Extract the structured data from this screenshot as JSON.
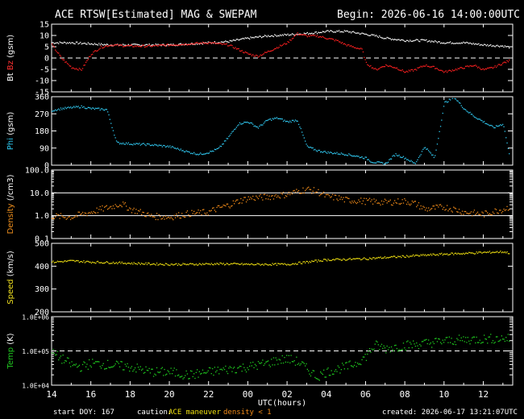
{
  "header": {
    "title": "ACE RTSW[Estimated] MAG & SWEPAM",
    "begin": "Begin: 2026-06-16 14:00:00UTC"
  },
  "footer": {
    "start_doy": "start DOY: 167",
    "caution_label": "caution:",
    "ace_maneuver": "ACE maneuver",
    "density_note": "density < 1",
    "created": "created: 2026-06-17 13:21:07UTC",
    "xlabel": "UTC(hours)"
  },
  "chart_data": [
    {
      "type": "scatter",
      "ylabel_parts": [
        "Bt",
        "Bz",
        "(gsm)"
      ],
      "ylabel_colors": [
        "#ffffff",
        "#ff3030",
        "#ffffff"
      ],
      "yticks": [
        "15",
        "10",
        "5",
        "0",
        "-5",
        "-10",
        "-15"
      ],
      "ylim": [
        -15,
        15
      ],
      "dashed_ref": 0,
      "series": [
        {
          "name": "Bt",
          "color": "#ffffff",
          "x": [
            14.0,
            15.0,
            16.0,
            17.0,
            18.0,
            19.0,
            20.0,
            21.0,
            22.0,
            23.0,
            24.0,
            25.0,
            26.0,
            26.8,
            27.5,
            28.0,
            29.0,
            29.8,
            30.5,
            31.0,
            32.0,
            33.0,
            34.0,
            35.0,
            36.0,
            37.0,
            37.3
          ],
          "values": [
            7,
            7,
            6.5,
            6,
            6,
            6,
            6,
            6.5,
            7,
            7.5,
            9,
            10,
            10.5,
            11,
            11.5,
            12,
            12,
            11,
            10,
            9,
            8,
            8,
            7,
            7,
            6,
            5.5,
            5
          ]
        },
        {
          "name": "Bz",
          "color": "#ff2020",
          "x": [
            14.0,
            14.5,
            15.0,
            15.5,
            16.0,
            16.5,
            17.0,
            18.0,
            19.0,
            20.0,
            21.0,
            22.0,
            23.0,
            24.0,
            24.5,
            25.0,
            25.5,
            26.0,
            26.5,
            27.0,
            27.5,
            28.0,
            28.5,
            29.0,
            29.8,
            30.0,
            30.5,
            31.0,
            31.5,
            32.0,
            32.5,
            33.0,
            33.5,
            34.0,
            35.0,
            35.5,
            36.0,
            36.5,
            37.0,
            37.3
          ],
          "values": [
            6,
            0,
            -4,
            -5,
            2,
            5,
            6,
            5.5,
            5.5,
            6,
            6.5,
            7,
            6,
            2,
            1,
            3,
            5,
            7,
            11,
            10,
            10,
            9,
            8,
            6,
            4,
            -2,
            -5,
            -3,
            -4,
            -6,
            -5,
            -3,
            -4,
            -6,
            -4,
            -3,
            -5,
            -4,
            -2,
            -1
          ]
        }
      ]
    },
    {
      "type": "scatter",
      "ylabel_parts": [
        "Phi",
        "(gsm)"
      ],
      "ylabel_colors": [
        "#2ec8f0",
        "#ffffff"
      ],
      "yticks": [
        "360",
        "270",
        "180",
        "90",
        "0"
      ],
      "ylim": [
        0,
        360
      ],
      "series": [
        {
          "name": "Phi",
          "color": "#30c8f0",
          "x": [
            14.0,
            14.5,
            15.0,
            15.5,
            16.0,
            16.8,
            17.3,
            18.0,
            19.0,
            20.0,
            21.0,
            21.5,
            22.0,
            22.5,
            23.0,
            23.5,
            24.0,
            24.5,
            25.0,
            25.5,
            26.0,
            26.5,
            27.0,
            27.5,
            28.0,
            28.5,
            29.0,
            29.5,
            30.0,
            30.3,
            31.0,
            31.5,
            32.0,
            32.5,
            33.0,
            33.5,
            34.0,
            34.5,
            35.0,
            35.5,
            36.0,
            36.5,
            37.0,
            37.3
          ],
          "values": [
            290,
            300,
            305,
            310,
            300,
            295,
            120,
            115,
            110,
            100,
            70,
            60,
            70,
            90,
            150,
            220,
            230,
            200,
            240,
            250,
            230,
            240,
            100,
            80,
            70,
            65,
            60,
            50,
            40,
            20,
            10,
            60,
            40,
            10,
            100,
            40,
            330,
            360,
            300,
            260,
            230,
            200,
            220,
            60
          ]
        }
      ]
    },
    {
      "type": "scatter",
      "ylabel_parts": [
        "Density",
        "(/cm3)"
      ],
      "ylabel_colors": [
        "#f0901e",
        "#ffffff"
      ],
      "yticks": [
        "100.0",
        "10.0",
        "1.0",
        "0.1"
      ],
      "ylim": [
        0.1,
        100
      ],
      "log": true,
      "ref_lines": [
        10,
        1
      ],
      "series": [
        {
          "name": "Density",
          "color": "#f08a18",
          "x": [
            14.0,
            15.0,
            16.0,
            17.0,
            17.5,
            18.0,
            19.0,
            20.0,
            21.0,
            22.0,
            23.0,
            24.0,
            25.0,
            26.0,
            26.5,
            27.0,
            27.5,
            28.0,
            28.5,
            29.0,
            30.0,
            31.0,
            32.0,
            32.5,
            33.0,
            34.0,
            35.0,
            36.0,
            37.0,
            37.3
          ],
          "values": [
            1.0,
            0.9,
            1.5,
            2.5,
            3.5,
            2.0,
            1.0,
            0.9,
            1.3,
            1.5,
            3.0,
            6.0,
            7.0,
            9.0,
            12.0,
            15.0,
            12.0,
            7.0,
            6.5,
            5.0,
            4.5,
            4.0,
            4.5,
            3.5,
            2.0,
            2.5,
            1.5,
            1.2,
            2.0,
            2.5
          ]
        }
      ]
    },
    {
      "type": "scatter",
      "ylabel_parts": [
        "Speed",
        "(km/s)"
      ],
      "ylabel_colors": [
        "#f0e020",
        "#ffffff"
      ],
      "yticks": [
        "500",
        "400",
        "300",
        "200"
      ],
      "ylim": [
        200,
        500
      ],
      "series": [
        {
          "name": "Speed",
          "color": "#f0e010",
          "x": [
            14.0,
            15.0,
            16.0,
            17.0,
            18.0,
            19.0,
            20.0,
            21.0,
            22.0,
            23.0,
            24.0,
            25.0,
            26.0,
            27.0,
            28.0,
            29.0,
            30.0,
            31.0,
            32.0,
            33.0,
            34.0,
            35.0,
            36.0,
            37.0,
            37.3
          ],
          "values": [
            420,
            425,
            420,
            418,
            415,
            412,
            410,
            410,
            412,
            412,
            410,
            410,
            410,
            420,
            430,
            432,
            435,
            440,
            445,
            450,
            455,
            458,
            462,
            465,
            460
          ]
        }
      ]
    },
    {
      "type": "scatter",
      "ylabel_parts": [
        "Temp",
        "(K)"
      ],
      "ylabel_colors": [
        "#20c820",
        "#ffffff"
      ],
      "yticks": [
        "1.0E+06",
        "1.0E+05",
        "1.0E+04"
      ],
      "ylim": [
        10000,
        1000000
      ],
      "log": true,
      "dashed_ref": 100000,
      "series": [
        {
          "name": "Temp",
          "color": "#20d020",
          "x": [
            14.0,
            14.5,
            15.0,
            15.5,
            16.0,
            17.0,
            18.0,
            19.0,
            20.0,
            21.0,
            22.0,
            23.0,
            24.0,
            25.0,
            25.5,
            26.0,
            26.5,
            27.0,
            27.5,
            28.0,
            28.5,
            29.0,
            29.5,
            30.0,
            30.5,
            31.0,
            32.0,
            33.0,
            34.0,
            35.0,
            36.0,
            37.0,
            37.3
          ],
          "values": [
            90000,
            60000,
            40000,
            35000,
            45000,
            40000,
            35000,
            25000,
            25000,
            20000,
            25000,
            30000,
            35000,
            45000,
            55000,
            60000,
            50000,
            30000,
            18000,
            25000,
            30000,
            35000,
            45000,
            70000,
            150000,
            120000,
            150000,
            170000,
            200000,
            220000,
            230000,
            240000,
            230000
          ]
        }
      ]
    }
  ],
  "x_axis": {
    "tick_labels": [
      "14",
      "16",
      "18",
      "20",
      "22",
      "00",
      "02",
      "04",
      "06",
      "08",
      "10",
      "12"
    ],
    "tick_hours": [
      14,
      16,
      18,
      20,
      22,
      24,
      26,
      28,
      30,
      32,
      34,
      36
    ],
    "range_hours": [
      14,
      37.5
    ]
  }
}
